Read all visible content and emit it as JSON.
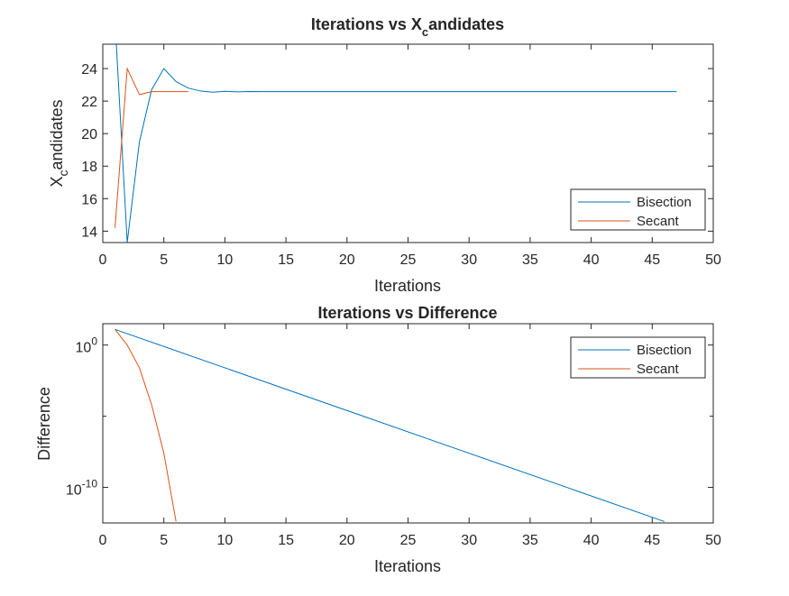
{
  "figure": {
    "background": "#ffffff",
    "axis_color": "#262626",
    "series_colors": {
      "Bisection": "#0072BD",
      "Secant": "#D95319"
    }
  },
  "chart_data": [
    {
      "type": "line",
      "title": "Iterations vs X",
      "title_subscript": "c",
      "title_suffix": "andidates",
      "xlabel": "Iterations",
      "ylabel": "X",
      "ylabel_subscript": "c",
      "ylabel_suffix": "andidates",
      "xlim": [
        0,
        50
      ],
      "ylim": [
        13.3,
        25.5
      ],
      "xticks": [
        0,
        5,
        10,
        15,
        20,
        25,
        30,
        35,
        40,
        45,
        50
      ],
      "yticks": [
        14,
        16,
        18,
        20,
        22,
        24
      ],
      "grid": false,
      "legend": "bottom-right",
      "series": [
        {
          "name": "Bisection",
          "color": "#0072BD",
          "x": [
            1,
            2,
            3,
            4,
            5,
            6,
            7,
            8,
            9,
            10,
            11,
            12,
            13,
            14,
            15,
            16,
            17,
            18,
            19,
            20,
            21,
            22,
            23,
            24,
            25,
            26,
            27,
            28,
            29,
            30,
            31,
            32,
            33,
            34,
            35,
            36,
            37,
            38,
            39,
            40,
            41,
            42,
            43,
            44,
            45,
            46,
            47
          ],
          "y": [
            27.0,
            13.3,
            19.5,
            22.7,
            24.0,
            23.2,
            22.8,
            22.62,
            22.55,
            22.6,
            22.57,
            22.59,
            22.58,
            22.58,
            22.58,
            22.58,
            22.58,
            22.58,
            22.58,
            22.58,
            22.58,
            22.58,
            22.58,
            22.58,
            22.58,
            22.58,
            22.58,
            22.58,
            22.58,
            22.58,
            22.58,
            22.58,
            22.58,
            22.58,
            22.58,
            22.58,
            22.58,
            22.58,
            22.58,
            22.58,
            22.58,
            22.58,
            22.58,
            22.58,
            22.58,
            22.58,
            22.58
          ]
        },
        {
          "name": "Secant",
          "color": "#D95319",
          "x": [
            1,
            2,
            3,
            4,
            5,
            6,
            7
          ],
          "y": [
            14.2,
            24.0,
            22.4,
            22.58,
            22.58,
            22.58,
            22.58
          ]
        }
      ]
    },
    {
      "type": "line",
      "title": "Iterations vs Difference",
      "xlabel": "Iterations",
      "ylabel": "Difference",
      "xlim": [
        0,
        50
      ],
      "yscale": "log",
      "ylim_log10": [
        -12.5,
        1.5
      ],
      "xticks": [
        0,
        5,
        10,
        15,
        20,
        25,
        30,
        35,
        40,
        45,
        50
      ],
      "yticks_log10": [
        0,
        -10
      ],
      "ytick_labels": [
        {
          "base": "10",
          "exp": "0"
        },
        {
          "base": "10",
          "exp": "-10"
        }
      ],
      "grid": false,
      "legend": "top-right",
      "series": [
        {
          "name": "Bisection",
          "color": "#0072BD",
          "x": [
            1,
            46
          ],
          "log10_y": [
            1.1,
            -12.4
          ]
        },
        {
          "name": "Secant",
          "color": "#D95319",
          "x": [
            1,
            2,
            3,
            4,
            5,
            6
          ],
          "log10_y": [
            1.1,
            0.0,
            -1.6,
            -4.2,
            -7.6,
            -12.4
          ]
        }
      ]
    }
  ]
}
